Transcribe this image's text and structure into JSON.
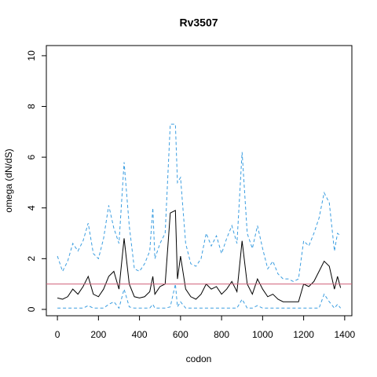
{
  "chart_data": {
    "type": "line",
    "title": "Rv3507",
    "x_label": "codon",
    "y_label": "omega (dN/dS)",
    "x": [
      0,
      25,
      50,
      75,
      100,
      125,
      150,
      175,
      200,
      225,
      250,
      275,
      300,
      325,
      350,
      375,
      400,
      425,
      450,
      465,
      475,
      500,
      525,
      550,
      575,
      585,
      600,
      625,
      650,
      675,
      700,
      725,
      750,
      775,
      800,
      825,
      850,
      875,
      900,
      925,
      950,
      975,
      1000,
      1025,
      1050,
      1075,
      1100,
      1125,
      1150,
      1175,
      1200,
      1225,
      1250,
      1275,
      1300,
      1325,
      1350,
      1365,
      1380
    ],
    "series": [
      {
        "color": "#000000",
        "dash": false,
        "values": [
          0.45,
          0.4,
          0.5,
          0.8,
          0.6,
          0.9,
          1.3,
          0.6,
          0.5,
          0.8,
          1.3,
          1.5,
          0.8,
          2.8,
          1.0,
          0.5,
          0.45,
          0.5,
          0.7,
          1.3,
          0.6,
          0.9,
          1.0,
          3.8,
          3.9,
          1.2,
          2.1,
          0.8,
          0.5,
          0.4,
          0.6,
          1.0,
          0.8,
          0.9,
          0.6,
          0.8,
          1.1,
          0.7,
          2.7,
          1.0,
          0.6,
          1.2,
          0.8,
          0.5,
          0.6,
          0.4,
          0.3,
          0.3,
          0.3,
          0.3,
          1.0,
          0.9,
          1.1,
          1.5,
          1.9,
          1.7,
          0.8,
          1.3,
          0.85
        ]
      },
      {
        "color": "#3a9de0",
        "dash": true,
        "values": [
          2.1,
          1.5,
          1.9,
          2.6,
          2.3,
          2.7,
          3.4,
          2.2,
          2.0,
          2.8,
          4.1,
          3.2,
          2.6,
          5.8,
          3.3,
          1.6,
          1.5,
          1.8,
          2.3,
          4.0,
          2.0,
          2.6,
          3.0,
          7.3,
          7.3,
          5.0,
          5.2,
          2.6,
          1.8,
          1.7,
          2.0,
          3.0,
          2.5,
          2.9,
          2.2,
          2.8,
          3.3,
          2.6,
          6.2,
          3.0,
          2.4,
          3.3,
          2.4,
          1.6,
          1.9,
          1.4,
          1.2,
          1.2,
          1.1,
          1.2,
          2.7,
          2.5,
          3.0,
          3.6,
          4.6,
          4.2,
          2.3,
          3.0,
          2.9
        ]
      },
      {
        "color": "#3a9de0",
        "dash": true,
        "values": [
          0.05,
          0.05,
          0.05,
          0.05,
          0.05,
          0.05,
          0.15,
          0.05,
          0.05,
          0.05,
          0.2,
          0.3,
          0.05,
          0.8,
          0.1,
          0.05,
          0.05,
          0.05,
          0.05,
          0.2,
          0.05,
          0.05,
          0.05,
          0.1,
          1.0,
          0.1,
          0.3,
          0.05,
          0.05,
          0.05,
          0.05,
          0.05,
          0.05,
          0.05,
          0.05,
          0.05,
          0.05,
          0.05,
          0.4,
          0.05,
          0.05,
          0.15,
          0.05,
          0.05,
          0.05,
          0.05,
          0.05,
          0.05,
          0.05,
          0.05,
          0.05,
          0.05,
          0.05,
          0.05,
          0.6,
          0.3,
          0.05,
          0.2,
          0.05
        ]
      }
    ],
    "hline": 1,
    "hline_color": "#d0607a",
    "xlim": [
      -54,
      1435
    ],
    "xticks": [
      0,
      200,
      400,
      600,
      800,
      1000,
      1200,
      1400
    ],
    "ylim": [
      -0.25,
      10.4
    ],
    "yticks": [
      0,
      2,
      4,
      6,
      8,
      10
    ]
  }
}
